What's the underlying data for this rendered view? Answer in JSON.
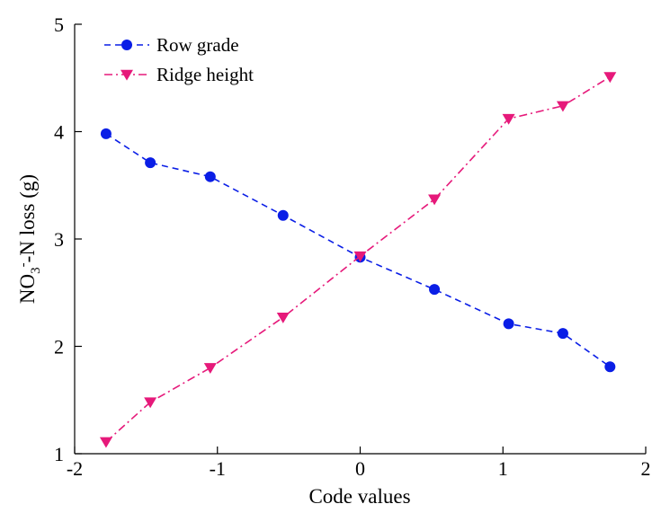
{
  "chart_data": {
    "type": "line",
    "title": "",
    "xlabel": "Code values",
    "ylabel": {
      "prefix": "NO",
      "sub": "3",
      "sup": "-",
      "suffix": "-N loss (g)"
    },
    "xlim": [
      -2,
      2
    ],
    "ylim": [
      1,
      5
    ],
    "x_ticks": [
      -2,
      -1,
      0,
      1,
      2
    ],
    "y_ticks": [
      1,
      2,
      3,
      4,
      5
    ],
    "grid": false,
    "legend_position": "top-left",
    "series": [
      {
        "name": "Row grade",
        "color": "#0a1ee6",
        "marker": "circle",
        "line_style": "dashed",
        "x": [
          -1.78,
          -1.47,
          -1.05,
          -0.54,
          0.0,
          0.52,
          1.04,
          1.42,
          1.75
        ],
        "y": [
          3.98,
          3.71,
          3.58,
          3.22,
          2.83,
          2.53,
          2.21,
          2.12,
          1.81
        ]
      },
      {
        "name": "Ridge height",
        "color": "#e6197a",
        "marker": "triangle-down",
        "line_style": "dash-dot",
        "x": [
          -1.78,
          -1.47,
          -1.05,
          -0.54,
          0.0,
          0.52,
          1.04,
          1.42,
          1.75
        ],
        "y": [
          1.11,
          1.48,
          1.8,
          2.27,
          2.84,
          3.37,
          4.12,
          4.24,
          4.51
        ]
      }
    ]
  }
}
